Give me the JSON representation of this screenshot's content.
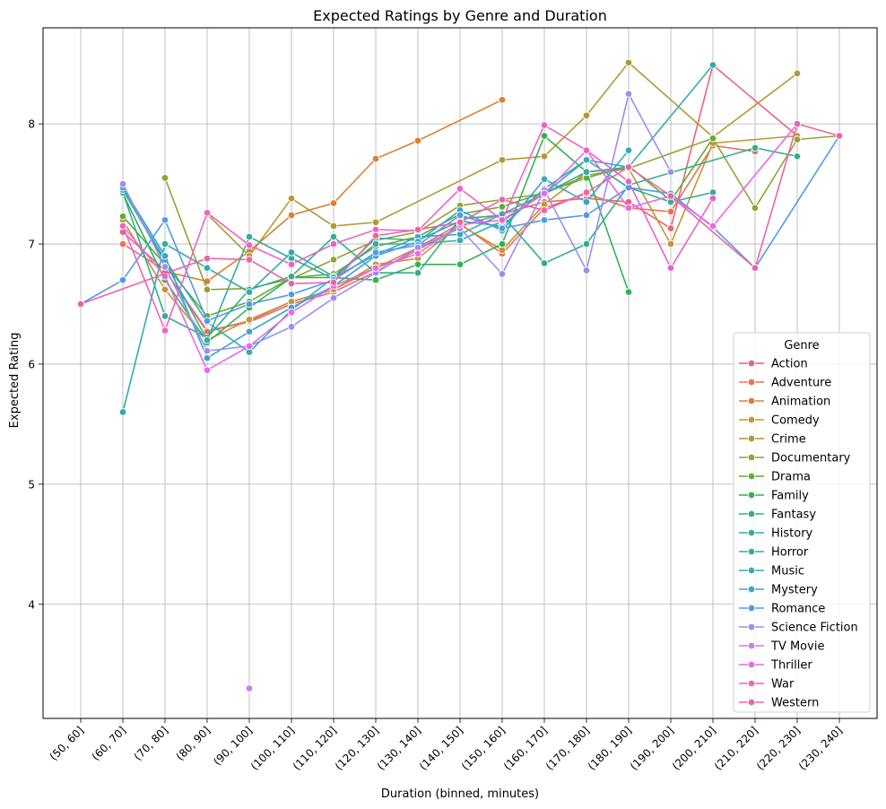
{
  "chart_data": {
    "type": "line",
    "title": "Expected Ratings by Genre and Duration",
    "xlabel": "Duration (binned, minutes)",
    "ylabel": "Expected Rating",
    "ylim": [
      3.05,
      8.8
    ],
    "yticks": [
      4,
      5,
      6,
      7,
      8
    ],
    "grid": true,
    "legend": {
      "title": "Genre",
      "placement": "lower-right"
    },
    "categories": [
      "(50, 60]",
      "(60, 70]",
      "(70, 80]",
      "(80, 90]",
      "(90, 100]",
      "(100, 110]",
      "(110, 120]",
      "(120, 130]",
      "(130, 140]",
      "(140, 150]",
      "(150, 160]",
      "(160, 170]",
      "(170, 180]",
      "(180, 190]",
      "(190, 200]",
      "(200, 210]",
      "(210, 220]",
      "(220, 230]",
      "(230, 240]"
    ],
    "series": [
      {
        "name": "Action",
        "color": "#e8657a",
        "values": [
          null,
          7.1,
          6.78,
          6.28,
          6.35,
          6.5,
          6.6,
          6.77,
          6.95,
          7.15,
          7.25,
          7.35,
          7.38,
          7.35,
          7.13,
          8.49,
          null,
          7.9,
          null
        ]
      },
      {
        "name": "Adventure",
        "color": "#ea7059",
        "values": [
          null,
          7.0,
          6.78,
          6.27,
          6.36,
          6.52,
          6.62,
          6.8,
          6.97,
          7.17,
          6.92,
          7.3,
          7.42,
          7.3,
          7.27,
          7.82,
          7.77,
          null,
          null
        ]
      },
      {
        "name": "Animation",
        "color": "#dc8031",
        "values": [
          null,
          null,
          6.77,
          6.69,
          6.94,
          7.24,
          7.34,
          7.71,
          7.86,
          null,
          8.2,
          null,
          null,
          null,
          null,
          null,
          null,
          null,
          null
        ]
      },
      {
        "name": "Comedy",
        "color": "#c69532",
        "values": [
          null,
          7.2,
          6.62,
          6.2,
          6.37,
          6.52,
          6.62,
          6.83,
          6.88,
          7.16,
          6.95,
          7.33,
          7.6,
          7.63,
          7.0,
          7.84,
          null,
          7.9,
          null
        ]
      },
      {
        "name": "Crime",
        "color": "#b19a31",
        "values": [
          null,
          null,
          null,
          7.25,
          6.9,
          7.38,
          7.15,
          7.18,
          null,
          null,
          7.7,
          7.73,
          8.07,
          8.51,
          null,
          7.89,
          null,
          8.42,
          null
        ]
      },
      {
        "name": "Documentary",
        "color": "#92a331",
        "values": [
          null,
          null,
          7.55,
          6.62,
          6.63,
          6.71,
          6.87,
          7.03,
          7.1,
          7.32,
          7.37,
          7.42,
          7.57,
          7.63,
          null,
          7.88,
          7.3,
          7.87,
          7.9
        ]
      },
      {
        "name": "Drama",
        "color": "#5fae32",
        "values": [
          null,
          7.23,
          6.83,
          6.4,
          6.52,
          6.72,
          6.75,
          6.98,
          7.06,
          7.25,
          7.31,
          7.43,
          7.55,
          7.65,
          7.36,
          7.88,
          null,
          null,
          null
        ]
      },
      {
        "name": "Family",
        "color": "#32b254",
        "values": [
          null,
          7.42,
          6.7,
          6.18,
          6.47,
          6.72,
          6.72,
          6.7,
          6.83,
          6.83,
          7.0,
          7.9,
          7.6,
          6.6,
          null,
          null,
          null,
          null,
          null
        ]
      },
      {
        "name": "Fantasy",
        "color": "#35ad8d",
        "values": [
          null,
          7.43,
          6.4,
          6.22,
          6.62,
          6.73,
          7.06,
          6.76,
          6.76,
          7.21,
          7.24,
          6.84,
          7.0,
          7.49,
          null,
          null,
          7.8,
          7.73,
          null
        ]
      },
      {
        "name": "History",
        "color": "#36ab9f",
        "values": [
          null,
          7.45,
          6.85,
          6.2,
          7.06,
          6.88,
          6.71,
          7.05,
          7.03,
          7.19,
          7.15,
          7.46,
          7.7,
          7.47,
          7.35,
          7.43,
          null,
          null,
          null
        ]
      },
      {
        "name": "Horror",
        "color": "#37aaad",
        "values": [
          null,
          5.6,
          7.0,
          6.8,
          6.6,
          6.93,
          6.73,
          7.0,
          7.0,
          7.03,
          7.19,
          7.42,
          7.6,
          7.64,
          null,
          8.49,
          null,
          null,
          null
        ]
      },
      {
        "name": "Music",
        "color": "#38a9ba",
        "values": [
          null,
          7.45,
          6.87,
          6.35,
          6.1,
          6.45,
          6.72,
          6.91,
          7.06,
          7.08,
          7.25,
          7.42,
          7.7,
          7.64,
          null,
          null,
          null,
          null,
          null
        ]
      },
      {
        "name": "Mystery",
        "color": "#3aa5cd",
        "values": [
          null,
          7.47,
          6.9,
          6.05,
          6.27,
          6.47,
          6.65,
          6.9,
          7.02,
          7.28,
          7.11,
          7.54,
          7.35,
          7.78,
          null,
          null,
          null,
          null,
          null
        ]
      },
      {
        "name": "Romance",
        "color": "#519ae7",
        "values": [
          6.5,
          6.7,
          7.2,
          6.36,
          6.5,
          6.58,
          6.7,
          6.93,
          6.99,
          7.24,
          7.13,
          7.2,
          7.24,
          7.47,
          7.42,
          7.14,
          6.8,
          null,
          7.9
        ]
      },
      {
        "name": "Science Fiction",
        "color": "#9f8ded",
        "values": [
          null,
          7.5,
          6.81,
          6.11,
          6.15,
          6.31,
          6.55,
          6.76,
          6.97,
          7.13,
          6.75,
          7.45,
          6.78,
          8.25,
          7.6,
          null,
          null,
          null,
          null
        ]
      },
      {
        "name": "TV Movie",
        "color": "#c77fed",
        "values": [
          null,
          null,
          null,
          null,
          3.3,
          null,
          null,
          null,
          null,
          null,
          null,
          null,
          null,
          null,
          null,
          null,
          null,
          null,
          null
        ]
      },
      {
        "name": "Thriller",
        "color": "#ea67eb",
        "values": [
          null,
          7.15,
          6.73,
          5.95,
          6.15,
          6.43,
          6.65,
          6.8,
          6.92,
          7.16,
          7.2,
          7.42,
          7.78,
          7.3,
          7.4,
          7.15,
          null,
          8.0,
          null
        ]
      },
      {
        "name": "War",
        "color": "#ec62c7",
        "values": [
          null,
          7.15,
          6.28,
          7.26,
          6.99,
          6.83,
          7.0,
          7.12,
          7.11,
          7.46,
          7.2,
          7.99,
          7.78,
          7.52,
          6.8,
          7.38,
          null,
          null,
          null
        ]
      },
      {
        "name": "Western",
        "color": "#ec65a3",
        "values": [
          6.5,
          null,
          null,
          6.88,
          6.87,
          6.67,
          6.68,
          7.07,
          7.12,
          7.18,
          7.37,
          7.28,
          7.43,
          7.64,
          7.4,
          null,
          6.8,
          8.0,
          7.9
        ]
      }
    ]
  }
}
